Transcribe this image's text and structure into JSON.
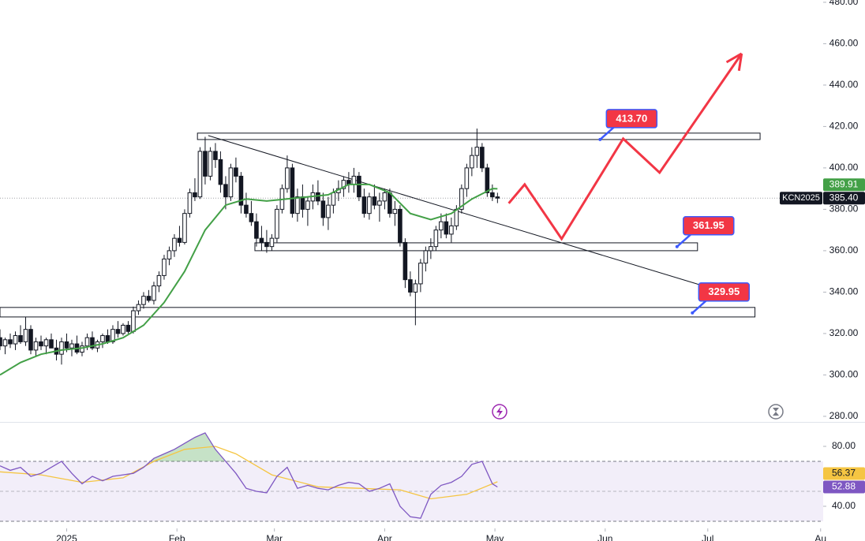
{
  "chart_data": {
    "type": "candlestick",
    "symbol": "KCN2025",
    "xlim": [
      0,
      160.5
    ],
    "ylim": [
      277.3,
      481.1
    ],
    "xticks": [
      {
        "value": 13,
        "label": "2025"
      },
      {
        "value": 34.5,
        "label": "Feb"
      },
      {
        "value": 53.5,
        "label": "Mar"
      },
      {
        "value": 75,
        "label": "Apr"
      },
      {
        "value": 96.5,
        "label": "May"
      },
      {
        "value": 118,
        "label": "Jun"
      },
      {
        "value": 138,
        "label": "Jul"
      },
      {
        "value": 160,
        "label": "Au"
      }
    ],
    "yticks": [
      {
        "value": 280,
        "label": "280.00"
      },
      {
        "value": 300,
        "label": "300.00"
      },
      {
        "value": 320,
        "label": "320.00"
      },
      {
        "value": 340,
        "label": "340.00"
      },
      {
        "value": 360,
        "label": "360.00"
      },
      {
        "value": 380,
        "label": "380.00"
      },
      {
        "value": 400,
        "label": "400.00"
      },
      {
        "value": 420,
        "label": "420.00"
      },
      {
        "value": 440,
        "label": "440.00"
      },
      {
        "value": 460,
        "label": "460.00"
      },
      {
        "value": 480,
        "label": "480.00"
      }
    ],
    "candles": [
      [
        318,
        322,
        312,
        314
      ],
      [
        314,
        318,
        310,
        317
      ],
      [
        317,
        320,
        313,
        315
      ],
      [
        315,
        321,
        312,
        319
      ],
      [
        319,
        324,
        315,
        316
      ],
      [
        316,
        328,
        314,
        322
      ],
      [
        322,
        324,
        310,
        312
      ],
      [
        312,
        318,
        309,
        316
      ],
      [
        316,
        319,
        312,
        314
      ],
      [
        314,
        318,
        310,
        317
      ],
      [
        317,
        320,
        313,
        313
      ],
      [
        313,
        317,
        307,
        310
      ],
      [
        310,
        318,
        305,
        316
      ],
      [
        316,
        320,
        311,
        313
      ],
      [
        313,
        317,
        309,
        315
      ],
      [
        315,
        319,
        310,
        311
      ],
      [
        311,
        316,
        309,
        314
      ],
      [
        314,
        320,
        312,
        318
      ],
      [
        318,
        321,
        312,
        313
      ],
      [
        313,
        317,
        311,
        316
      ],
      [
        316,
        320,
        313,
        319
      ],
      [
        319,
        322,
        315,
        316
      ],
      [
        316,
        324,
        315,
        322
      ],
      [
        322,
        326,
        318,
        320
      ],
      [
        320,
        325,
        319,
        324
      ],
      [
        324,
        326,
        320,
        321
      ],
      [
        321,
        333,
        320,
        331
      ],
      [
        331,
        336,
        329,
        334
      ],
      [
        334,
        340,
        332,
        338
      ],
      [
        338,
        341,
        335,
        336
      ],
      [
        336,
        345,
        334,
        343
      ],
      [
        343,
        350,
        340,
        348
      ],
      [
        348,
        358,
        346,
        356
      ],
      [
        356,
        362,
        353,
        360
      ],
      [
        360,
        368,
        357,
        366
      ],
      [
        366,
        372,
        362,
        364
      ],
      [
        364,
        380,
        363,
        378
      ],
      [
        378,
        390,
        376,
        388
      ],
      [
        388,
        395,
        384,
        386
      ],
      [
        386,
        410,
        385,
        408
      ],
      [
        408,
        415,
        392,
        396
      ],
      [
        396,
        410,
        394,
        408
      ],
      [
        408,
        412,
        400,
        404
      ],
      [
        404,
        408,
        388,
        392
      ],
      [
        392,
        396,
        380,
        386
      ],
      [
        386,
        402,
        384,
        400
      ],
      [
        400,
        405,
        393,
        396
      ],
      [
        396,
        398,
        378,
        382
      ],
      [
        382,
        388,
        376,
        378
      ],
      [
        378,
        384,
        372,
        374
      ],
      [
        374,
        378,
        362,
        366
      ],
      [
        366,
        372,
        360,
        364
      ],
      [
        364,
        370,
        359,
        362
      ],
      [
        362,
        368,
        360,
        366
      ],
      [
        366,
        382,
        364,
        380
      ],
      [
        380,
        392,
        378,
        390
      ],
      [
        390,
        406,
        388,
        400
      ],
      [
        400,
        402,
        376,
        378
      ],
      [
        378,
        390,
        374,
        386
      ],
      [
        386,
        392,
        376,
        380
      ],
      [
        380,
        386,
        372,
        384
      ],
      [
        384,
        392,
        380,
        388
      ],
      [
        388,
        394,
        382,
        384
      ],
      [
        384,
        388,
        372,
        376
      ],
      [
        376,
        386,
        370,
        382
      ],
      [
        382,
        390,
        378,
        388
      ],
      [
        388,
        394,
        384,
        390
      ],
      [
        390,
        396,
        386,
        394
      ],
      [
        394,
        398,
        388,
        392
      ],
      [
        392,
        400,
        388,
        396
      ],
      [
        396,
        398,
        384,
        386
      ],
      [
        386,
        390,
        376,
        378
      ],
      [
        378,
        388,
        375,
        386
      ],
      [
        386,
        392,
        380,
        382
      ],
      [
        382,
        388,
        374,
        384
      ],
      [
        384,
        390,
        380,
        388
      ],
      [
        388,
        390,
        376,
        378
      ],
      [
        378,
        384,
        372,
        380
      ],
      [
        380,
        382,
        362,
        364
      ],
      [
        364,
        366,
        342,
        346
      ],
      [
        346,
        350,
        338,
        340
      ],
      [
        340,
        346,
        324,
        344
      ],
      [
        344,
        356,
        340,
        354
      ],
      [
        354,
        362,
        350,
        360
      ],
      [
        360,
        366,
        356,
        362
      ],
      [
        362,
        372,
        360,
        370
      ],
      [
        370,
        378,
        366,
        374
      ],
      [
        374,
        378,
        366,
        368
      ],
      [
        368,
        376,
        364,
        372
      ],
      [
        372,
        382,
        370,
        380
      ],
      [
        380,
        392,
        378,
        390
      ],
      [
        390,
        402,
        386,
        400
      ],
      [
        400,
        410,
        396,
        406
      ],
      [
        406,
        419,
        400,
        410
      ],
      [
        410,
        412,
        398,
        400
      ],
      [
        400,
        402,
        386,
        388
      ],
      [
        388,
        392,
        384,
        386
      ],
      [
        386,
        388,
        383,
        385.4
      ]
    ],
    "ma": {
      "color": "#43a047",
      "x": [
        0,
        4,
        8,
        12,
        16,
        20,
        24,
        28,
        32,
        36,
        40,
        44,
        48,
        52,
        56,
        60,
        64,
        68,
        72,
        76,
        80,
        84,
        88,
        92,
        96,
        97
      ],
      "values": [
        300,
        306,
        310,
        312,
        313,
        315,
        318,
        324,
        335,
        350,
        370,
        382,
        385,
        384,
        385,
        386,
        387,
        392,
        392,
        388,
        378,
        375,
        378,
        385,
        390,
        389.91
      ]
    },
    "zones": [
      {
        "top": 416.8,
        "bottom": 413.7,
        "x0": 38.5,
        "x1": 148.2
      },
      {
        "top": 363.8,
        "bottom": 360,
        "x0": 49.7,
        "x1": 136
      },
      {
        "top": 332.6,
        "bottom": 328,
        "x0": 0,
        "x1": 147.2
      }
    ],
    "trendline": {
      "x": [
        40.6,
        136.9
      ],
      "values": [
        415.6,
        343.2
      ]
    },
    "forecast": {
      "color": "#f23645",
      "x": [
        99.2,
        102.3,
        109.5,
        121.5,
        128.6,
        144.6
      ],
      "values": [
        382.9,
        392,
        365.7,
        414.1,
        397.7,
        455.2
      ]
    },
    "callouts": [
      {
        "value": 413.7,
        "label": "413.70",
        "x": 117
      },
      {
        "value": 361.95,
        "label": "361.95",
        "x": 132
      },
      {
        "value": 329.95,
        "label": "329.95",
        "x": 135
      }
    ],
    "last_price": {
      "value": 385.4,
      "label": "385.40"
    },
    "ma_last": {
      "value": 389.91,
      "label": "389.91"
    },
    "rsi": {
      "ylim": [
        26.3,
        95.8
      ],
      "yticks": [
        {
          "value": 80,
          "label": "80.00"
        },
        {
          "value": 40,
          "label": "40.00"
        }
      ],
      "bands": [
        30,
        70
      ],
      "midline": 50,
      "color": "#7e57c2",
      "ma_color": "#f5c542",
      "x": [
        0,
        2,
        4,
        6,
        8,
        10,
        12,
        14,
        16,
        18,
        20,
        22,
        24,
        26,
        28,
        30,
        32,
        34,
        36,
        38,
        40,
        42,
        44,
        46,
        48,
        50,
        52,
        54,
        56,
        58,
        60,
        62,
        64,
        66,
        68,
        70,
        72,
        74,
        76,
        78,
        80,
        82,
        84,
        86,
        88,
        90,
        92,
        94,
        96,
        97
      ],
      "values": [
        67,
        64,
        66,
        60,
        62,
        66,
        70,
        62,
        55,
        60,
        57,
        60,
        61,
        62,
        66,
        72,
        75,
        78,
        82,
        86,
        89,
        78,
        70,
        62,
        52,
        50,
        49,
        60,
        66,
        52,
        54,
        52,
        51,
        54,
        56,
        55,
        50,
        52,
        55,
        40,
        33,
        32,
        48,
        54,
        56,
        60,
        68,
        70,
        55,
        52.88
      ],
      "ma_x": [
        0,
        8,
        16,
        24,
        30,
        36,
        42,
        46,
        53,
        62,
        70,
        78,
        84,
        91,
        97
      ],
      "ma_values": [
        63,
        61,
        56,
        59,
        70,
        78,
        80,
        75,
        61,
        53,
        52,
        51,
        45,
        48,
        56.37
      ],
      "last": {
        "value": 52.88,
        "label": "52.88"
      },
      "ma_last": {
        "value": 56.37,
        "label": "56.37"
      }
    }
  }
}
